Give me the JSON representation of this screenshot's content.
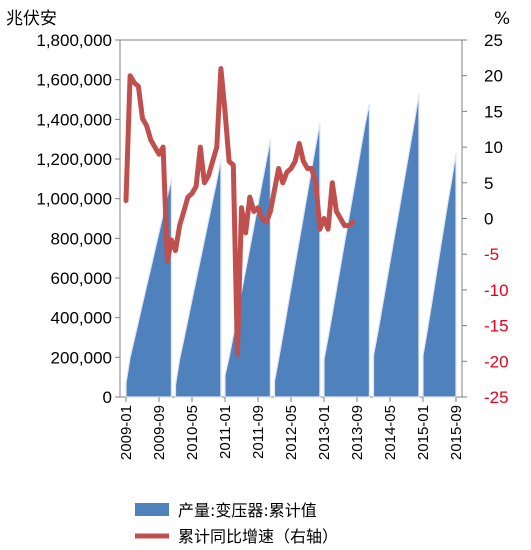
{
  "chart_data": {
    "type": "area+line",
    "left_unit": "兆伏安",
    "right_unit": "%",
    "left_axis": {
      "min": 0,
      "max": 1800000,
      "step": 200000,
      "tick_labels": [
        "0",
        "200,000",
        "400,000",
        "600,000",
        "800,000",
        "1,000,000",
        "1,200,000",
        "1,400,000",
        "1,600,000",
        "1,800,000"
      ]
    },
    "right_axis": {
      "min": -25,
      "max": 25,
      "step": 5,
      "tick_labels": [
        "-25",
        "-20",
        "-15",
        "-10",
        "-5",
        "0",
        "5",
        "10",
        "15",
        "20",
        "25"
      ]
    },
    "x_labels": [
      "2009-01",
      "2009-09",
      "2010-05",
      "2011-01",
      "2011-09",
      "2012-05",
      "2013-01",
      "2013-09",
      "2014-05",
      "2015-01",
      "2015-09"
    ],
    "series": [
      {
        "name": "产量:变压器:累计值",
        "type": "area",
        "axis": "left",
        "color": "#4f81bd",
        "segments": [
          {
            "start": "2009-01",
            "values": [
              70000,
              200000,
              290000,
              380000,
              470000,
              560000,
              650000,
              740000,
              830000,
              920000,
              1010000,
              1100000
            ]
          },
          {
            "start": "2010-01",
            "values": [
              60000,
              190000,
              290000,
              390000,
              490000,
              590000,
              690000,
              790000,
              890000,
              990000,
              1090000,
              1200000
            ]
          },
          {
            "start": "2011-01",
            "values": [
              110000,
              200000,
              310000,
              420000,
              530000,
              640000,
              750000,
              860000,
              970000,
              1080000,
              1190000,
              1300000
            ]
          },
          {
            "start": "2012-01",
            "values": [
              80000,
              190000,
              310000,
              430000,
              550000,
              670000,
              790000,
              910000,
              1030000,
              1150000,
              1270000,
              1380000
            ]
          },
          {
            "start": "2013-01",
            "values": [
              190000,
              300000,
              420000,
              540000,
              660000,
              780000,
              900000,
              1020000,
              1140000,
              1260000,
              1380000,
              1480000
            ]
          },
          {
            "start": "2014-01",
            "values": [
              210000,
              320000,
              440000,
              560000,
              680000,
              800000,
              920000,
              1040000,
              1160000,
              1280000,
              1400000,
              1530000
            ]
          },
          {
            "start": "2015-01",
            "values": [
              210000,
              330000,
              460000,
              590000,
              720000,
              850000,
              980000,
              1100000,
              1230000
            ]
          }
        ]
      },
      {
        "name": "累计同比增速（右轴）",
        "type": "line",
        "axis": "right",
        "color": "#c0504d",
        "start": "2009-01",
        "values": [
          2.5,
          20,
          19,
          18.5,
          14,
          13,
          11,
          10,
          9,
          10,
          -6,
          -3,
          -4.5,
          -1,
          1,
          3,
          3.5,
          4.5,
          10,
          5,
          6,
          8,
          10,
          21,
          15,
          8,
          7.5,
          -19,
          1.5,
          -2,
          3,
          1,
          1.5,
          0,
          -0.5,
          1,
          4,
          7,
          5,
          6.5,
          7,
          8,
          10.5,
          8,
          7,
          7,
          5,
          -1.5,
          0,
          -1.5,
          5,
          1,
          0,
          -1,
          -1,
          -0.5
        ]
      }
    ]
  }
}
